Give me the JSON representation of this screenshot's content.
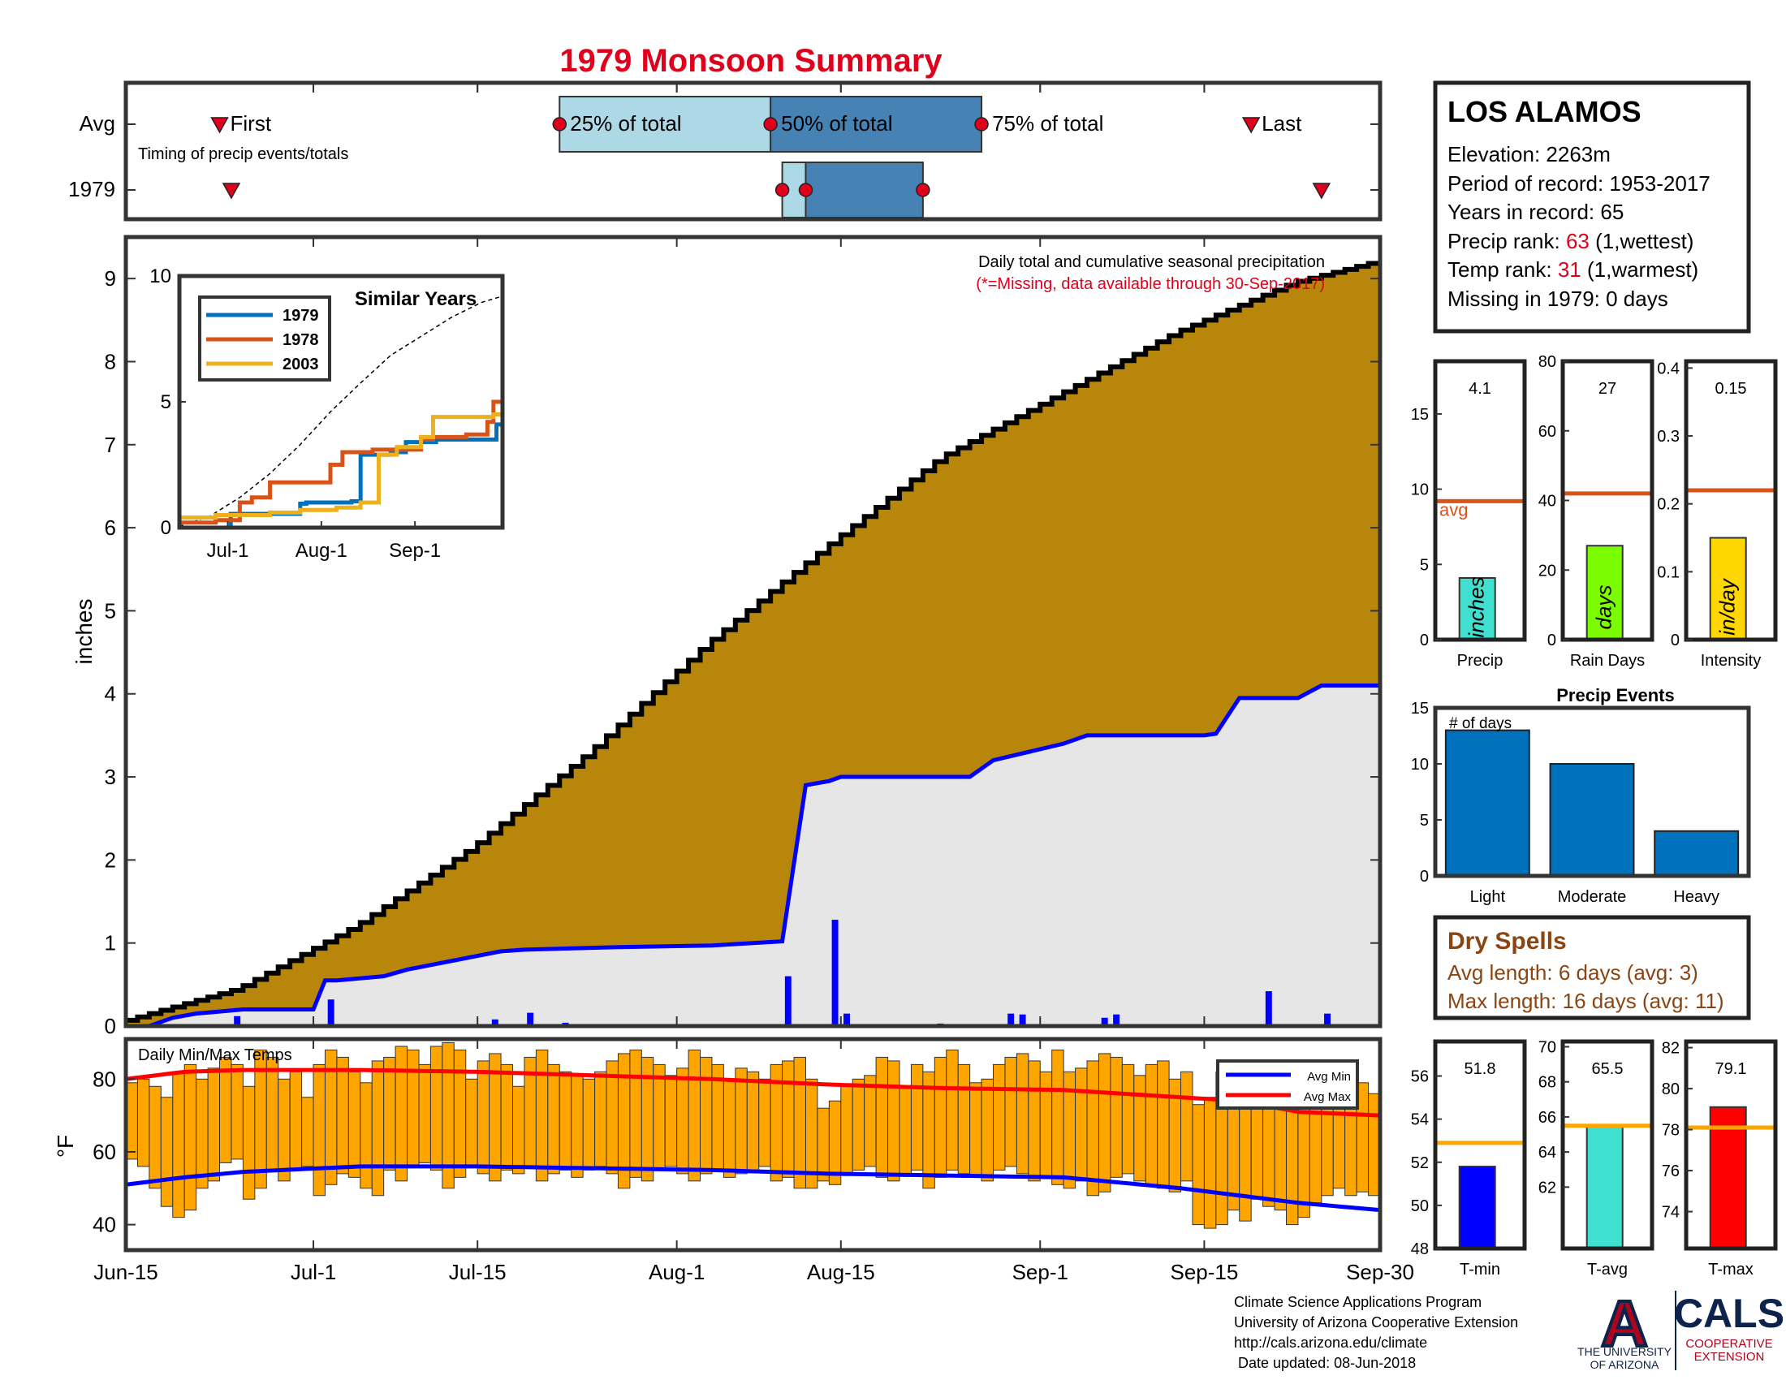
{
  "page": {
    "title": "1979 Monsoon Summary"
  },
  "timing": {
    "row_labels": [
      "Avg",
      "1979"
    ],
    "caption": "Timing of precip events/totals",
    "markers": {
      "first": "First",
      "p25": "25% of total",
      "p50": "50% of total",
      "p75": "75% of total",
      "last": "Last"
    },
    "avg_days": {
      "first": 8,
      "p25": 37,
      "p50": 55,
      "p75": 73,
      "last": 96
    },
    "year_days": {
      "first": 9,
      "p25": 56,
      "p50": 58,
      "p75": 68,
      "last": 102
    }
  },
  "x_axis": {
    "days": 107,
    "ticks": [
      {
        "day": 0,
        "label": "Jun-15"
      },
      {
        "day": 16,
        "label": "Jul-1"
      },
      {
        "day": 30,
        "label": "Jul-15"
      },
      {
        "day": 47,
        "label": "Aug-1"
      },
      {
        "day": 61,
        "label": "Aug-15"
      },
      {
        "day": 78,
        "label": "Sep-1"
      },
      {
        "day": 92,
        "label": "Sep-15"
      },
      {
        "day": 107,
        "label": "Sep-30"
      }
    ]
  },
  "station": {
    "name": "LOS ALAMOS",
    "elevation": "Elevation: 2263m",
    "period": "Period of record: 1953-2017",
    "years": "Years in record: 65",
    "precip_rank_prefix": "Precip rank: ",
    "precip_rank": "63",
    "precip_rank_suffix": " (1,wettest)",
    "temp_rank_prefix": "Temp rank: ",
    "temp_rank": "31",
    "temp_rank_suffix": " (1,warmest)",
    "missing": "Missing in 1979: 0 days"
  },
  "chart_data": [
    {
      "type": "area",
      "name": "main",
      "title": "Daily total and cumulative seasonal precipitation",
      "subtitle": "(*=Missing, data available through 30-Sep-2017)",
      "ylabel": "inches",
      "ylim": [
        0,
        9.5
      ],
      "yticks": [
        0,
        1,
        2,
        3,
        4,
        5,
        6,
        7,
        8,
        9
      ],
      "avg_cumulative": {
        "day": [
          0,
          10,
          20,
          30,
          40,
          50,
          60,
          70,
          80,
          90,
          100,
          107
        ],
        "value": [
          0.05,
          0.45,
          1.2,
          2.15,
          3.3,
          4.6,
          5.75,
          6.85,
          7.6,
          8.35,
          8.95,
          9.2
        ]
      },
      "cumulative_1979": {
        "day": [
          0,
          2,
          4,
          6,
          10,
          16,
          17,
          18,
          22,
          24,
          32,
          34,
          42,
          50,
          56,
          58,
          60,
          61,
          72,
          74,
          80,
          82,
          92,
          93,
          95,
          100,
          102,
          105,
          107
        ],
        "value": [
          0,
          0,
          0.1,
          0.15,
          0.2,
          0.2,
          0.55,
          0.55,
          0.6,
          0.68,
          0.9,
          0.92,
          0.95,
          0.97,
          1.02,
          2.9,
          2.95,
          3.0,
          3.0,
          3.2,
          3.4,
          3.5,
          3.5,
          3.52,
          3.95,
          3.95,
          4.1,
          4.1,
          4.1
        ]
      },
      "daily_1979": {
        "day": [
          9,
          17,
          31,
          34,
          37,
          56,
          60,
          61,
          69,
          75,
          76,
          83,
          84,
          97,
          102
        ],
        "value": [
          0.12,
          0.32,
          0.08,
          0.16,
          0.04,
          0.6,
          1.28,
          0.15,
          0.03,
          0.15,
          0.14,
          0.1,
          0.14,
          0.42,
          0.15
        ]
      }
    },
    {
      "type": "line",
      "name": "similar-years",
      "title": "Similar Years",
      "ylim": [
        0,
        10
      ],
      "yticks": [
        0,
        5,
        10
      ],
      "xticks": [
        {
          "day": 16,
          "label": "Jul-1"
        },
        {
          "day": 47,
          "label": "Aug-1"
        },
        {
          "day": 78,
          "label": "Sep-1"
        }
      ],
      "series": [
        {
          "name": "1979",
          "color": "#0072BD",
          "day": [
            0,
            12,
            17,
            40,
            42,
            57,
            60,
            70,
            75,
            85,
            95,
            105,
            107
          ],
          "value": [
            0,
            0,
            0.55,
            0.95,
            1.0,
            1.05,
            2.9,
            3.0,
            3.4,
            3.5,
            3.5,
            4.1,
            4.1
          ]
        },
        {
          "name": "1978",
          "color": "#D95319",
          "day": [
            0,
            12,
            20,
            24,
            30,
            50,
            54,
            64,
            80,
            84,
            95,
            102,
            104,
            107
          ],
          "value": [
            0.2,
            0.3,
            1.0,
            1.2,
            1.8,
            2.5,
            3.0,
            3.1,
            3.5,
            3.6,
            3.7,
            4.2,
            5.0,
            5.0
          ]
        },
        {
          "name": "2003",
          "color": "#EDB120",
          "day": [
            0,
            12,
            30,
            40,
            52,
            60,
            66,
            72,
            80,
            84,
            95,
            104,
            107
          ],
          "value": [
            0.4,
            0.5,
            0.6,
            0.7,
            0.8,
            1.0,
            2.9,
            3.2,
            3.6,
            4.4,
            4.4,
            4.5,
            4.5
          ]
        }
      ],
      "avg": {
        "day": [
          0,
          10,
          20,
          30,
          40,
          50,
          60,
          70,
          80,
          90,
          100,
          107
        ],
        "value": [
          0.05,
          0.45,
          1.2,
          2.15,
          3.3,
          4.6,
          5.75,
          6.85,
          7.6,
          8.35,
          8.95,
          9.2
        ]
      }
    },
    {
      "type": "bar",
      "name": "precip",
      "categories": [
        "Precip"
      ],
      "values": [
        4.1
      ],
      "avg": 9.2,
      "ylim": [
        0,
        18.5
      ],
      "yticks": [
        0,
        5,
        10,
        15
      ],
      "label": "4.1",
      "unit": "inches",
      "bar_color": "#40E0D0",
      "avg_label": "avg"
    },
    {
      "type": "bar",
      "name": "rain-days",
      "categories": [
        "Rain Days"
      ],
      "values": [
        27
      ],
      "avg": 42,
      "ylim": [
        0,
        80
      ],
      "yticks": [
        0,
        20,
        40,
        60,
        80
      ],
      "label": "27",
      "unit": "days",
      "bar_color": "#7CFC00"
    },
    {
      "type": "bar",
      "name": "intensity",
      "categories": [
        "Intensity"
      ],
      "values": [
        0.15
      ],
      "avg": 0.22,
      "ylim": [
        0,
        0.41
      ],
      "yticks": [
        0,
        0.1,
        0.2,
        0.3,
        0.4
      ],
      "label": "0.15",
      "unit": "in/day",
      "bar_color": "#FFD700"
    },
    {
      "type": "bar",
      "name": "precip-events",
      "title": "Precip Events",
      "ylabel": "# of days",
      "categories": [
        "Light",
        "Moderate",
        "Heavy"
      ],
      "values": [
        13,
        10,
        4
      ],
      "ylim": [
        0,
        15
      ],
      "yticks": [
        0,
        5,
        10,
        15
      ],
      "bar_color": "#0072BD"
    },
    {
      "type": "bar",
      "name": "daily-temps",
      "title": "Daily Min/Max Temps",
      "ylabel": "°F",
      "ylim": [
        33,
        91
      ],
      "yticks": [
        40,
        60,
        80
      ],
      "legend": [
        "Avg Min",
        "Avg Max"
      ],
      "avg_max": {
        "day": [
          0,
          5,
          10,
          20,
          30,
          40,
          50,
          60,
          70,
          80,
          90,
          95,
          100,
          107
        ],
        "value": [
          80,
          82,
          82.5,
          82.5,
          82,
          81,
          80,
          78.5,
          77.5,
          77,
          75,
          74,
          71,
          70
        ]
      },
      "avg_min": {
        "day": [
          0,
          5,
          10,
          20,
          30,
          40,
          50,
          60,
          70,
          80,
          90,
          95,
          100,
          107
        ],
        "value": [
          51,
          53,
          54.5,
          56,
          56,
          55.5,
          55,
          54,
          53.5,
          53,
          50,
          48,
          46,
          44
        ]
      },
      "max": [
        79,
        80,
        78,
        75,
        82,
        84,
        80,
        83,
        86,
        84,
        78,
        88,
        86,
        80,
        82,
        75,
        84,
        88,
        86,
        82,
        79,
        85,
        86,
        89,
        88,
        84,
        89,
        90,
        88,
        80,
        85,
        87,
        84,
        78,
        86,
        88,
        84,
        82,
        81,
        80,
        82,
        85,
        87,
        88,
        86,
        84,
        81,
        83,
        88,
        86,
        84,
        80,
        83,
        82,
        80,
        84,
        85,
        86,
        80,
        72,
        74,
        78,
        80,
        81,
        86,
        85,
        78,
        84,
        82,
        86,
        88,
        84,
        79,
        80,
        84,
        86,
        87,
        85,
        82,
        88,
        82,
        83,
        85,
        87,
        86,
        84,
        81,
        84,
        85,
        80,
        82,
        73,
        75,
        82,
        79,
        80,
        81,
        83,
        75,
        84,
        78,
        80,
        82,
        79,
        75,
        79,
        76
      ],
      "min": [
        58,
        56,
        50,
        45,
        42,
        44,
        50,
        52,
        57,
        58,
        47,
        50,
        55,
        52,
        55,
        56,
        48,
        51,
        54,
        53,
        50,
        48,
        55,
        52,
        56,
        57,
        55,
        50,
        53,
        56,
        54,
        52,
        55,
        54,
        56,
        52,
        54,
        55,
        53,
        55,
        56,
        54,
        50,
        53,
        52,
        55,
        56,
        54,
        52,
        54,
        55,
        53,
        54,
        55,
        56,
        52,
        53,
        50,
        50,
        52,
        51,
        54,
        55,
        56,
        53,
        52,
        54,
        55,
        50,
        53,
        55,
        54,
        53,
        52,
        55,
        56,
        54,
        52,
        53,
        51,
        50,
        52,
        48,
        49,
        53,
        54,
        52,
        51,
        50,
        49,
        52,
        40,
        39,
        40,
        44,
        41,
        47,
        45,
        44,
        40,
        42,
        46,
        48,
        50,
        48,
        49,
        48
      ],
      "bar_color": "#FFA500"
    },
    {
      "type": "bar",
      "name": "t-min",
      "categories": [
        "T-min"
      ],
      "values": [
        51.8
      ],
      "avg": 52.9,
      "ylim": [
        48,
        57.6
      ],
      "yticks": [
        48,
        50,
        52,
        54,
        56
      ],
      "label": "51.8",
      "bar_color": "#0000FF"
    },
    {
      "type": "bar",
      "name": "t-avg",
      "categories": [
        "T-avg"
      ],
      "values": [
        65.5
      ],
      "avg": 65.5,
      "ylim": [
        58.5,
        70.3
      ],
      "yticks": [
        62,
        64,
        66,
        68,
        70
      ],
      "label": "65.5",
      "bar_color": "#40E0D0"
    },
    {
      "type": "bar",
      "name": "t-max",
      "categories": [
        "T-max"
      ],
      "values": [
        79.1
      ],
      "avg": 78.1,
      "ylim": [
        72.2,
        82.3
      ],
      "yticks": [
        74,
        76,
        78,
        80,
        82
      ],
      "label": "79.1",
      "bar_color": "#FF0000"
    }
  ],
  "dry_spells": {
    "title": "Dry Spells",
    "avg": "Avg length: 6 days (avg: 3)",
    "max": "Max length: 16 days (avg: 11)"
  },
  "footer": {
    "lines": [
      "Climate Science Applications Program",
      "University of Arizona Cooperative Extension",
      "http://cals.arizona.edu/climate",
      " Date updated: 08-Jun-2018"
    ],
    "ua_logo": "A",
    "ua_text": [
      "THE UNIVERSITY",
      "OF ARIZONA"
    ],
    "cals_logo": "CALS",
    "cals_text": [
      "COOPERATIVE",
      "EXTENSION"
    ]
  },
  "colors": {
    "brown": "#B8860B",
    "gray_fill": "#E6E6E6",
    "blue_line": "#0000FF",
    "red": "#E0001B",
    "orange_avg": "#D95319",
    "temp_avg": "#FFA500",
    "dry": "#8B4513"
  }
}
